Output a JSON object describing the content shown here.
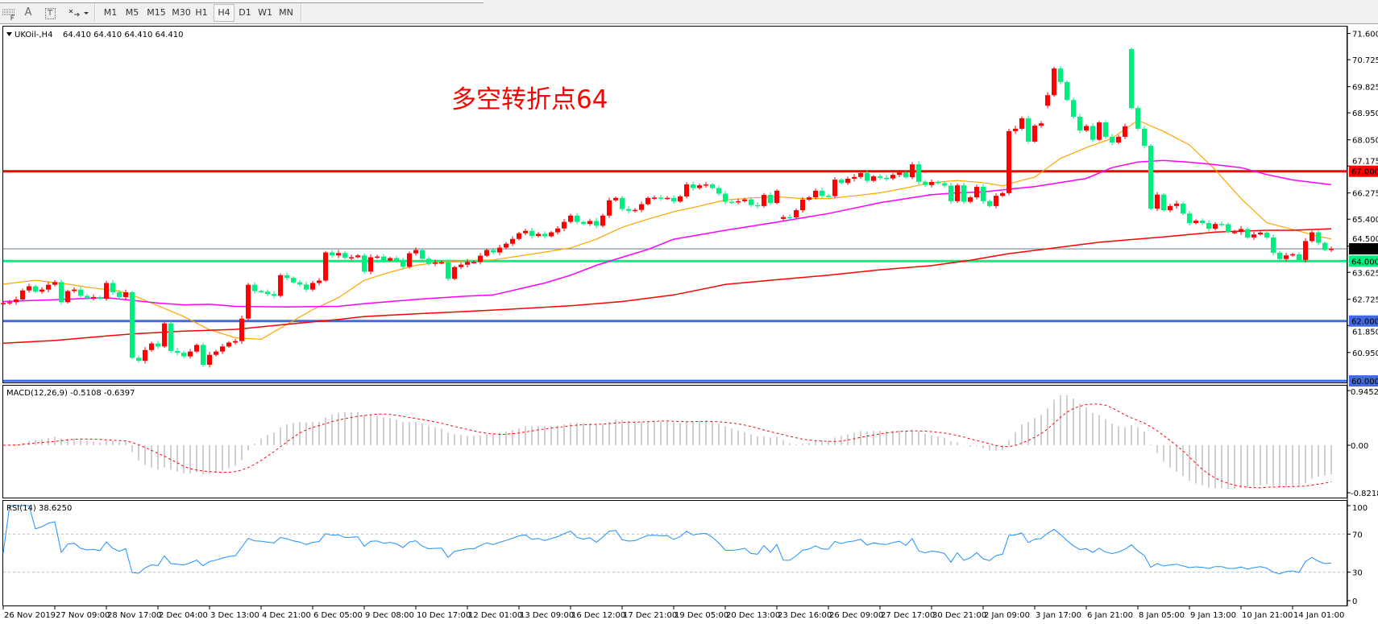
{
  "toolbar": {
    "tools": [
      "A",
      "T"
    ],
    "timeframes": [
      "M1",
      "M5",
      "M15",
      "M30",
      "H1",
      "H4",
      "D1",
      "W1",
      "MN"
    ],
    "active_timeframe": "H4"
  },
  "header": {
    "symbol_label": "UKOil-,H4",
    "ohlc_text": "64.410 64.410 64.410 64.410"
  },
  "annotation": {
    "text": "多空转折点64",
    "color": "#ff0000"
  },
  "chart_data": {
    "type": "candlestick",
    "symbol": "UKOil-",
    "timeframe": "H4",
    "colors": {
      "up": "#ff0000",
      "down": "#00f080",
      "ma_fast": "#ffa500",
      "ma_mid": "#ff00ff",
      "ma_slow": "#ff0000",
      "rsi": "#1e90ff",
      "macd_hist": "#c0c0c0",
      "macd_signal": "#ff0000"
    },
    "price_axis": {
      "ticks": [
        "71.600",
        "70.725",
        "69.825",
        "68.950",
        "68.050",
        "67.175",
        "66.275",
        "65.400",
        "64.500",
        "63.625",
        "62.725",
        "61.850",
        "60.950"
      ],
      "range": [
        59.8,
        71.9
      ]
    },
    "levels": [
      {
        "value": 67.0,
        "label": "67.000",
        "color": "#ff0000"
      },
      {
        "value": 64.0,
        "label": "64.000",
        "color": "#00f080"
      },
      {
        "value": 62.0,
        "label": "62.000",
        "color": "#4169e1"
      },
      {
        "value": 60.0,
        "label": "60.000",
        "color": "#4169e1"
      }
    ],
    "current_price": {
      "value": 64.41,
      "label": "64.410",
      "color": "#778899"
    },
    "candles": {
      "close": [
        62.6,
        62.63,
        62.72,
        63.02,
        63.16,
        62.98,
        63.05,
        63.21,
        63.3,
        62.63,
        63.0,
        63.05,
        62.84,
        62.76,
        62.8,
        62.74,
        63.27,
        62.96,
        62.8,
        62.96,
        60.77,
        60.67,
        61.03,
        61.25,
        61.15,
        61.92,
        61.0,
        60.94,
        60.82,
        60.98,
        61.2,
        60.54,
        60.87,
        60.98,
        61.15,
        61.28,
        61.33,
        62.08,
        63.21,
        63.0,
        62.98,
        62.9,
        62.84,
        63.53,
        63.44,
        63.29,
        63.22,
        63.05,
        63.27,
        63.35,
        64.29,
        64.19,
        64.27,
        64.11,
        64.13,
        64.19,
        63.65,
        64.13,
        64.15,
        64.02,
        64.1,
        64.02,
        63.81,
        64.26,
        64.37,
        64.08,
        63.92,
        63.95,
        63.96,
        63.41,
        63.8,
        63.88,
        63.97,
        63.97,
        64.18,
        64.37,
        64.29,
        64.45,
        64.58,
        64.74,
        64.93,
        65.01,
        64.84,
        64.91,
        64.83,
        64.96,
        65.09,
        65.31,
        65.52,
        65.31,
        65.24,
        65.34,
        65.18,
        65.52,
        66.03,
        66.11,
        65.74,
        65.68,
        65.71,
        65.9,
        66.11,
        66.12,
        66.1,
        66.11,
        65.99,
        66.16,
        66.56,
        66.44,
        66.53,
        66.56,
        66.44,
        66.25,
        65.98,
        65.97,
        66.0,
        66.06,
        65.87,
        65.84,
        66.21,
        65.94,
        66.35,
        65.47,
        65.46,
        65.7,
        66.05,
        66.13,
        66.35,
        66.18,
        66.17,
        66.72,
        66.61,
        66.75,
        66.81,
        66.94,
        66.68,
        66.83,
        66.78,
        66.76,
        66.88,
        66.96,
        66.8,
        67.23,
        66.65,
        66.54,
        66.64,
        66.6,
        66.52,
        66.0,
        66.53,
        65.98,
        66.13,
        66.48,
        66.0,
        65.84,
        66.18,
        66.27,
        68.34,
        68.42,
        68.77,
        67.99,
        68.52,
        68.6,
        69.54,
        70.43,
        69.98,
        69.38,
        68.82,
        68.36,
        68.51,
        68.05,
        68.63,
        68.15,
        67.96,
        68.15,
        68.5,
        69.11,
        68.42,
        67.85,
        65.75,
        66.22,
        65.7,
        65.84,
        65.92,
        65.59,
        65.27,
        65.35,
        65.27,
        65.08,
        65.24,
        65.23,
        64.97,
        64.97,
        65.07,
        64.79,
        64.89,
        64.95,
        64.79,
        64.28,
        64.07,
        64.19,
        64.23,
        64.04,
        64.67,
        64.96,
        64.61,
        64.37,
        64.41
      ],
      "open_overrides": {
        "121": 65.41,
        "162": 69.19,
        "175": 71.08
      }
    },
    "moving_averages": [
      {
        "key": "ma_fast",
        "points": [
          [
            0,
            63.23
          ],
          [
            5,
            63.36
          ],
          [
            10,
            63.23
          ],
          [
            14,
            63.1
          ],
          [
            18,
            63.0
          ],
          [
            20,
            62.87
          ],
          [
            24,
            62.51
          ],
          [
            28,
            62.15
          ],
          [
            32,
            61.71
          ],
          [
            36,
            61.44
          ],
          [
            40,
            61.39
          ],
          [
            44,
            61.89
          ],
          [
            48,
            62.38
          ],
          [
            52,
            62.78
          ],
          [
            56,
            63.36
          ],
          [
            60,
            63.63
          ],
          [
            64,
            63.86
          ],
          [
            68,
            63.97
          ],
          [
            72,
            64.02
          ],
          [
            76,
            64.04
          ],
          [
            80,
            64.17
          ],
          [
            84,
            64.3
          ],
          [
            88,
            64.44
          ],
          [
            92,
            64.73
          ],
          [
            96,
            65.13
          ],
          [
            100,
            65.4
          ],
          [
            104,
            65.65
          ],
          [
            108,
            65.84
          ],
          [
            112,
            66.04
          ],
          [
            116,
            66.11
          ],
          [
            120,
            66.15
          ],
          [
            124,
            66.09
          ],
          [
            128,
            66.09
          ],
          [
            132,
            66.18
          ],
          [
            136,
            66.28
          ],
          [
            140,
            66.44
          ],
          [
            144,
            66.62
          ],
          [
            148,
            66.69
          ],
          [
            152,
            66.62
          ],
          [
            155,
            66.51
          ],
          [
            158,
            66.7
          ],
          [
            160,
            66.8
          ],
          [
            164,
            67.43
          ],
          [
            168,
            67.79
          ],
          [
            172,
            68.1
          ],
          [
            176,
            68.7
          ],
          [
            180,
            68.33
          ],
          [
            184,
            67.88
          ],
          [
            188,
            67.05
          ],
          [
            192,
            66.09
          ],
          [
            196,
            65.28
          ],
          [
            200,
            65.06
          ],
          [
            204,
            64.83
          ],
          [
            206,
            64.74
          ]
        ]
      },
      {
        "key": "ma_mid",
        "points": [
          [
            0,
            62.65
          ],
          [
            8,
            62.71
          ],
          [
            16,
            62.78
          ],
          [
            20,
            62.69
          ],
          [
            24,
            62.6
          ],
          [
            28,
            62.54
          ],
          [
            32,
            62.56
          ],
          [
            36,
            62.49
          ],
          [
            44,
            62.47
          ],
          [
            52,
            62.49
          ],
          [
            56,
            62.58
          ],
          [
            60,
            62.65
          ],
          [
            64,
            62.72
          ],
          [
            68,
            62.78
          ],
          [
            72,
            62.83
          ],
          [
            76,
            62.87
          ],
          [
            80,
            63.07
          ],
          [
            84,
            63.27
          ],
          [
            88,
            63.53
          ],
          [
            92,
            63.86
          ],
          [
            96,
            64.13
          ],
          [
            100,
            64.39
          ],
          [
            104,
            64.73
          ],
          [
            112,
            65.03
          ],
          [
            120,
            65.3
          ],
          [
            128,
            65.59
          ],
          [
            136,
            65.95
          ],
          [
            144,
            66.22
          ],
          [
            148,
            66.28
          ],
          [
            152,
            66.31
          ],
          [
            156,
            66.4
          ],
          [
            160,
            66.49
          ],
          [
            168,
            66.76
          ],
          [
            172,
            67.12
          ],
          [
            176,
            67.31
          ],
          [
            180,
            67.36
          ],
          [
            184,
            67.3
          ],
          [
            188,
            67.22
          ],
          [
            192,
            67.12
          ],
          [
            196,
            66.89
          ],
          [
            200,
            66.71
          ],
          [
            206,
            66.55
          ]
        ]
      },
      {
        "key": "ma_slow",
        "points": [
          [
            0,
            61.26
          ],
          [
            8,
            61.35
          ],
          [
            16,
            61.5
          ],
          [
            20,
            61.57
          ],
          [
            28,
            61.66
          ],
          [
            36,
            61.72
          ],
          [
            44,
            61.89
          ],
          [
            48,
            61.97
          ],
          [
            52,
            62.05
          ],
          [
            56,
            62.15
          ],
          [
            64,
            62.24
          ],
          [
            72,
            62.32
          ],
          [
            80,
            62.41
          ],
          [
            88,
            62.51
          ],
          [
            96,
            62.65
          ],
          [
            104,
            62.87
          ],
          [
            112,
            63.22
          ],
          [
            120,
            63.38
          ],
          [
            128,
            63.53
          ],
          [
            136,
            63.71
          ],
          [
            144,
            63.85
          ],
          [
            150,
            64.03
          ],
          [
            156,
            64.25
          ],
          [
            170,
            64.63
          ],
          [
            180,
            64.81
          ],
          [
            188,
            64.97
          ],
          [
            196,
            65.03
          ],
          [
            200,
            65.03
          ],
          [
            206,
            65.08
          ]
        ]
      }
    ],
    "macd": {
      "label": "MACD(12,26,9) -0.5108 -0.6397",
      "ticks": [
        "0.9452",
        "0.00",
        "-0.8218"
      ],
      "range": [
        -0.8218,
        0.9452
      ]
    },
    "rsi": {
      "label": "RSI(14) 38.6250",
      "ticks": [
        "100",
        "70",
        "30",
        "0"
      ],
      "levels": [
        70,
        30
      ],
      "range": [
        0,
        100
      ]
    },
    "time_axis": [
      "26 Nov 2019",
      "27 Nov 09:00",
      "28 Nov 17:00",
      "2 Dec 04:00",
      "3 Dec 13:00",
      "4 Dec 21:00",
      "6 Dec 05:00",
      "9 Dec 08:00",
      "10 Dec 17:00",
      "12 Dec 01:00",
      "13 Dec 09:00",
      "16 Dec 12:00",
      "17 Dec 21:00",
      "19 Dec 05:00",
      "20 Dec 13:00",
      "23 Dec 16:00",
      "26 Dec 09:00",
      "27 Dec 17:00",
      "30 Dec 21:00",
      "2 Jan 09:00",
      "3 Jan 17:00",
      "6 Jan 21:00",
      "8 Jan 05:00",
      "9 Jan 13:00",
      "10 Jan 21:00",
      "14 Jan 01:00"
    ]
  }
}
